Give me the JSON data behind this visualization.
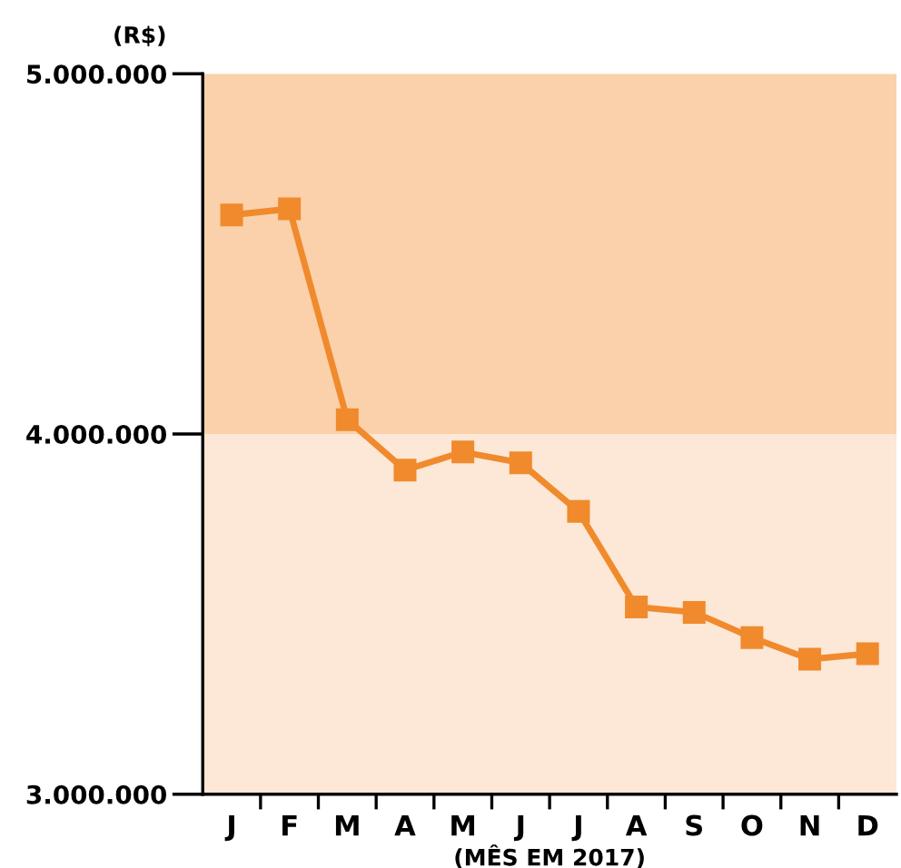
{
  "chart_data": {
    "type": "line",
    "xlabel": "(MÊS EM 2017)",
    "ylabel": "(R$)",
    "categories": [
      "J",
      "F",
      "M",
      "A",
      "M",
      "J",
      "J",
      "A",
      "S",
      "O",
      "N",
      "D"
    ],
    "series": [
      {
        "color": "#f08a2c",
        "values": [
          4608000,
          4625000,
          4040000,
          3900000,
          3950000,
          3920000,
          3785000,
          3520000,
          3505000,
          3435000,
          3375000,
          3390000
        ]
      }
    ],
    "ylim": [
      3000000,
      5000000
    ],
    "yticks": [
      {
        "value": 3000000,
        "label": "3.000.000"
      },
      {
        "value": 4000000,
        "label": "4.000.000"
      },
      {
        "value": 5000000,
        "label": "5.000.000"
      }
    ],
    "bands": [
      {
        "axis": "y",
        "from": 4000000,
        "to": 5000000,
        "color": "#fad1aa"
      },
      {
        "axis": "y",
        "from": 3000000,
        "to": 4000000,
        "color": "#fde7d6"
      }
    ],
    "grid": false,
    "legend": false,
    "marker": "square",
    "line_style": "solid"
  }
}
